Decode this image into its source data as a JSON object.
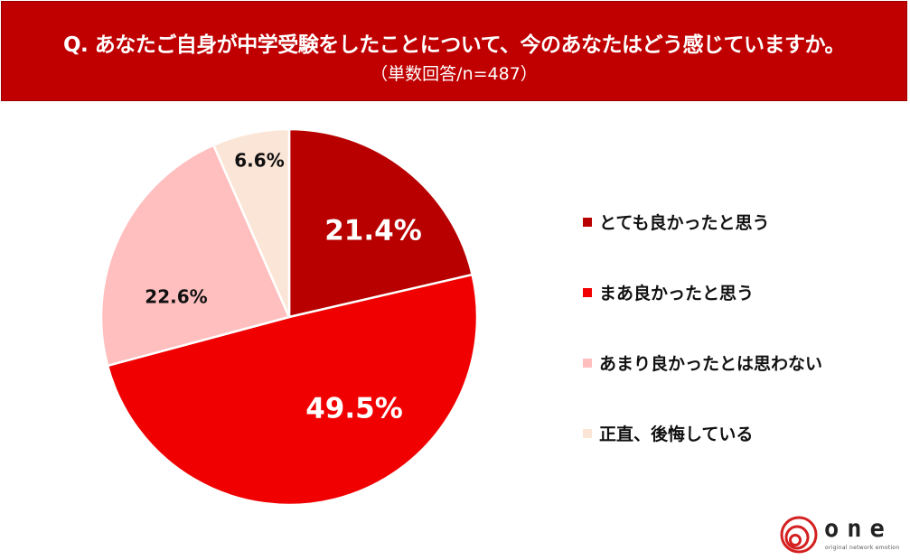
{
  "header": {
    "title": "Q. あなたご自身が中学受験をしたことについて、今のあなたはどう感じていますか。",
    "subtitle": "（単数回答/n=487）",
    "background": "#c00000"
  },
  "chart_data": {
    "type": "pie",
    "title": "Q. あなたご自身が中学受験をしたことについて、今のあなたはどう感じていますか。",
    "subtitle": "（単数回答/n=487）",
    "n": 487,
    "start_angle": "12 o'clock, clockwise",
    "categories": [
      "とても良かったと思う",
      "まあ良かったと思う",
      "あまり良かったとは思わない",
      "正直、後悔している"
    ],
    "values": [
      21.4,
      49.5,
      22.6,
      6.6
    ],
    "labels": [
      "21.4%",
      "49.5%",
      "22.6%",
      "6.6%"
    ],
    "colors": [
      "#b80000",
      "#f00000",
      "#ffbfbf",
      "#fbe5d6"
    ],
    "label_colors": [
      "#ffffff",
      "#ffffff",
      "#111111",
      "#111111"
    ],
    "legend_position": "right"
  },
  "legend": {
    "items": [
      {
        "label": "とても良かったと思う",
        "color": "#b80000"
      },
      {
        "label": "まあ良かったと思う",
        "color": "#f00000"
      },
      {
        "label": "あまり良かったとは思わない",
        "color": "#ffbfbf"
      },
      {
        "label": "正直、後悔している",
        "color": "#fbe5d6"
      }
    ]
  },
  "logo": {
    "word": "one",
    "tagline": "original network emotion"
  }
}
